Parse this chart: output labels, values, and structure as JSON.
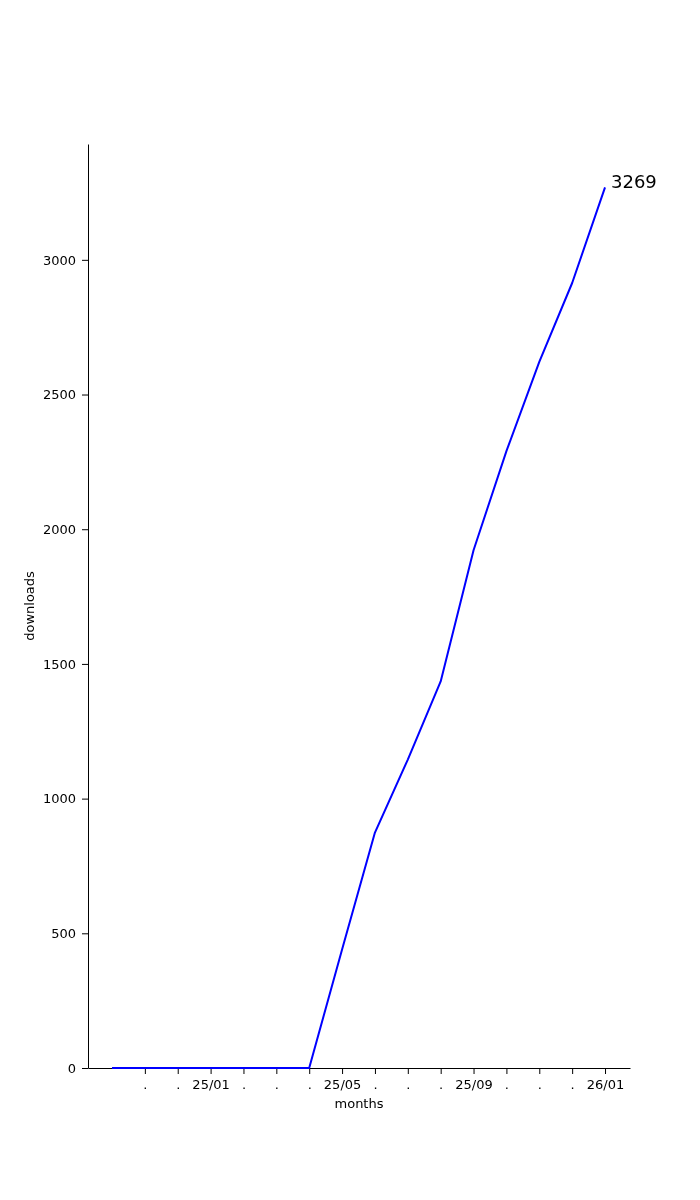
{
  "chart_data": {
    "type": "line",
    "xlabel": "months",
    "ylabel": "downloads",
    "categories": [
      null,
      ".",
      ".",
      "25/01",
      ".",
      ".",
      ".",
      "25/05",
      ".",
      ".",
      ".",
      "25/09",
      ".",
      ".",
      ".",
      "26/01"
    ],
    "series": [
      {
        "color": "#0000ff",
        "values": [
          0,
          0,
          0,
          0,
          0,
          0,
          0,
          440,
          874,
          1145,
          1435,
          1922,
          2290,
          2621,
          2914,
          3269
        ]
      }
    ],
    "ylim": [
      0,
      3430
    ],
    "yticks": [
      0,
      500,
      1000,
      1500,
      2000,
      2500,
      3000
    ],
    "annotations": [
      {
        "text": "3269",
        "x": "26/01",
        "y": 3269
      }
    ],
    "grid": false,
    "marker": "none",
    "line_style": "solid"
  }
}
